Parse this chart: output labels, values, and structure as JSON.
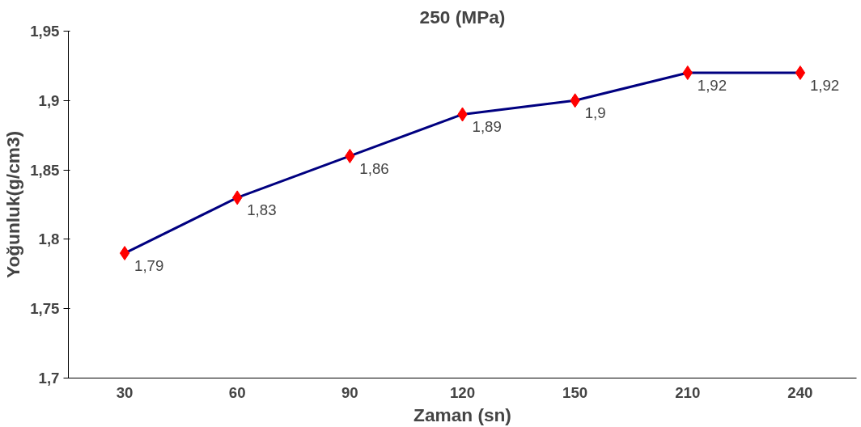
{
  "chart_data": {
    "type": "line",
    "title": "250 (MPa)",
    "xlabel": "Zaman (sn)",
    "ylabel": "Yoğunluk(g/cm3)",
    "categories": [
      "30",
      "60",
      "90",
      "120",
      "150",
      "210",
      "240"
    ],
    "series": [
      {
        "color": "#000080",
        "values": [
          1.79,
          1.83,
          1.86,
          1.89,
          1.9,
          1.92,
          1.92
        ],
        "colors": [
          "#ff0000",
          "#ff0000",
          "#ff0000",
          "#ff0000",
          "#ff0000",
          "#ff0000",
          "#ff0000"
        ],
        "value_labels": [
          "1,79",
          "1,83",
          "1,86",
          "1,89",
          "1,9",
          "1,92",
          "1,92"
        ]
      }
    ],
    "ylim": [
      1.7,
      1.95
    ],
    "yticks": [
      {
        "value": 1.7,
        "label": "1,7"
      },
      {
        "value": 1.75,
        "label": "1,75"
      },
      {
        "value": 1.8,
        "label": "1,8"
      },
      {
        "value": 1.85,
        "label": "1,85"
      },
      {
        "value": 1.9,
        "label": "1,9"
      },
      {
        "value": 1.95,
        "label": "1,95"
      }
    ],
    "marker": "diamond",
    "line_style": "solid",
    "grid": false
  }
}
